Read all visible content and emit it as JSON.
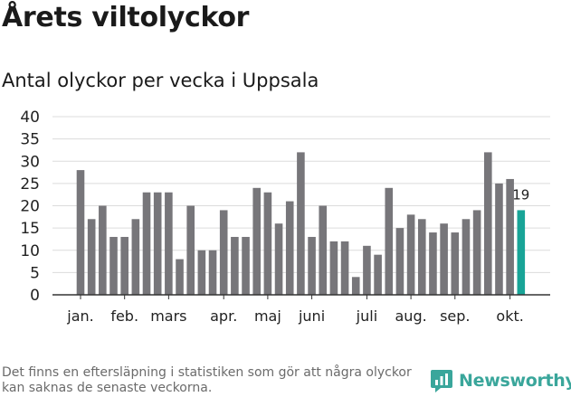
{
  "title": "Årets viltolyckor",
  "subtitle": "Antal olyckor per vecka i Uppsala",
  "footnote": "Det finns en eftersläpning i statistiken som gör att några olyckor kan saknas de senaste veckorna.",
  "brand": {
    "name": "Newsworthy",
    "color": "#3aa69b"
  },
  "colors": {
    "bar": "#77767a",
    "highlight": "#18a497",
    "grid": "#dcdcdc",
    "axis": "#333333"
  },
  "chart_data": {
    "type": "bar",
    "title": "Antal olyckor per vecka i Uppsala",
    "xlabel": "",
    "ylabel": "",
    "ylim": [
      0,
      40
    ],
    "yticks": [
      0,
      5,
      10,
      15,
      20,
      25,
      30,
      35,
      40
    ],
    "weeks": [
      1,
      2,
      3,
      4,
      5,
      6,
      7,
      8,
      9,
      10,
      11,
      12,
      13,
      14,
      15,
      16,
      17,
      18,
      19,
      20,
      21,
      22,
      23,
      24,
      25,
      26,
      27,
      28,
      29,
      30,
      31,
      32,
      33,
      34,
      35,
      36,
      37,
      38,
      39,
      40,
      41
    ],
    "values": [
      28,
      17,
      20,
      13,
      13,
      17,
      23,
      23,
      23,
      8,
      20,
      10,
      10,
      19,
      13,
      13,
      24,
      23,
      16,
      21,
      32,
      13,
      20,
      12,
      12,
      4,
      11,
      9,
      24,
      15,
      18,
      17,
      14,
      16,
      14,
      17,
      19,
      32,
      25,
      26,
      19
    ],
    "month_labels": [
      {
        "label": "jan.",
        "week": 1
      },
      {
        "label": "feb.",
        "week": 5
      },
      {
        "label": "mars",
        "week": 9
      },
      {
        "label": "apr.",
        "week": 14
      },
      {
        "label": "maj",
        "week": 18
      },
      {
        "label": "juni",
        "week": 22
      },
      {
        "label": "juli",
        "week": 27
      },
      {
        "label": "aug.",
        "week": 31
      },
      {
        "label": "sep.",
        "week": 35
      },
      {
        "label": "okt.",
        "week": 40
      }
    ],
    "highlight": {
      "week": 41,
      "value": 19,
      "label": "19"
    }
  }
}
